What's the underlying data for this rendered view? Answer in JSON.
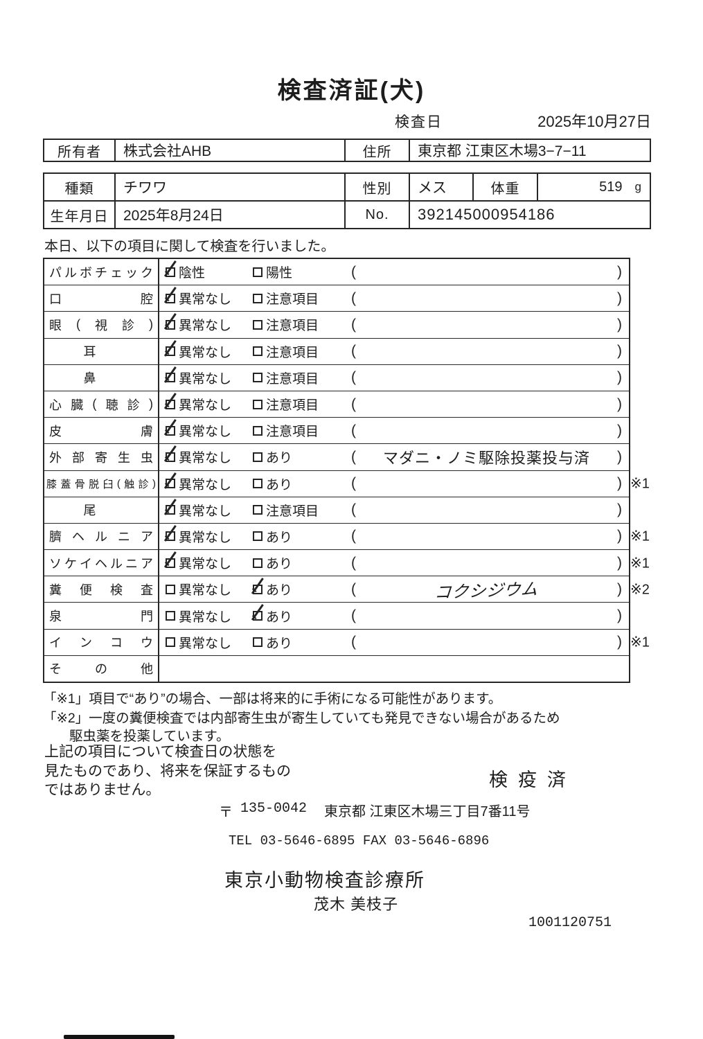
{
  "title": "検査済証(犬)",
  "inspection_date": {
    "label": "検査日",
    "value": "2025年10月27日"
  },
  "owner": {
    "label": "所有者",
    "value": "株式会社AHB",
    "address_label": "住所",
    "address": "東京都 江東区木場3−7−11"
  },
  "pet": {
    "species_label": "種類",
    "species": "チワワ",
    "sex_label": "性別",
    "sex": "メス",
    "weight_label": "体重",
    "weight": "519",
    "weight_unit": "g",
    "birth_label": "生年月日",
    "birth": "2025年8月24日",
    "no_label": "No.",
    "no": "392145000954186"
  },
  "intro": "本日、以下の項目に関して検査を行いました。",
  "table": {
    "rows": [
      {
        "label": "パルボチェック",
        "c1": {
          "checked": true,
          "label": "陰性"
        },
        "c2": {
          "checked": false,
          "label": "陽性"
        },
        "paren": "",
        "hand": false,
        "mark": ""
      },
      {
        "label": "口腔",
        "c1": {
          "checked": true,
          "label": "異常なし"
        },
        "c2": {
          "checked": false,
          "label": "注意項目"
        },
        "paren": "",
        "hand": false,
        "mark": ""
      },
      {
        "label": "眼(視診)",
        "c1": {
          "checked": true,
          "label": "異常なし"
        },
        "c2": {
          "checked": false,
          "label": "注意項目"
        },
        "paren": "",
        "hand": false,
        "mark": ""
      },
      {
        "label": "耳",
        "c1": {
          "checked": true,
          "label": "異常なし"
        },
        "c2": {
          "checked": false,
          "label": "注意項目"
        },
        "paren": "",
        "hand": false,
        "mark": ""
      },
      {
        "label": "鼻",
        "c1": {
          "checked": true,
          "label": "異常なし"
        },
        "c2": {
          "checked": false,
          "label": "注意項目"
        },
        "paren": "",
        "hand": false,
        "mark": ""
      },
      {
        "label": "心臓(聴診)",
        "c1": {
          "checked": true,
          "label": "異常なし"
        },
        "c2": {
          "checked": false,
          "label": "注意項目"
        },
        "paren": "",
        "hand": false,
        "mark": ""
      },
      {
        "label": "皮膚",
        "c1": {
          "checked": true,
          "label": "異常なし"
        },
        "c2": {
          "checked": false,
          "label": "注意項目"
        },
        "paren": "",
        "hand": false,
        "mark": ""
      },
      {
        "label": "外部寄生虫",
        "c1": {
          "checked": true,
          "label": "異常なし"
        },
        "c2": {
          "checked": false,
          "label": "あり"
        },
        "paren": "マダニ・ノミ駆除投薬投与済",
        "hand": false,
        "mark": ""
      },
      {
        "label": "膝蓋骨脱臼(触診)",
        "c1": {
          "checked": true,
          "label": "異常なし"
        },
        "c2": {
          "checked": false,
          "label": "あり"
        },
        "paren": "",
        "hand": false,
        "mark": "※1"
      },
      {
        "label": "尾",
        "c1": {
          "checked": true,
          "label": "異常なし"
        },
        "c2": {
          "checked": false,
          "label": "注意項目"
        },
        "paren": "",
        "hand": false,
        "mark": ""
      },
      {
        "label": "臍ヘルニア",
        "c1": {
          "checked": true,
          "label": "異常なし"
        },
        "c2": {
          "checked": false,
          "label": "あり"
        },
        "paren": "",
        "hand": false,
        "mark": "※1"
      },
      {
        "label": "ソケイヘルニア",
        "c1": {
          "checked": true,
          "label": "異常なし"
        },
        "c2": {
          "checked": false,
          "label": "あり"
        },
        "paren": "",
        "hand": false,
        "mark": "※1"
      },
      {
        "label": "糞便検査",
        "c1": {
          "checked": false,
          "label": "異常なし"
        },
        "c2": {
          "checked": true,
          "label": "あり"
        },
        "paren": "コクシジウム",
        "hand": true,
        "mark": "※2"
      },
      {
        "label": "泉門",
        "c1": {
          "checked": false,
          "label": "異常なし"
        },
        "c2": {
          "checked": true,
          "label": "あり"
        },
        "paren": "",
        "hand": false,
        "mark": ""
      },
      {
        "label": "インコウ",
        "c1": {
          "checked": false,
          "label": "異常なし"
        },
        "c2": {
          "checked": false,
          "label": "あり"
        },
        "paren": "",
        "hand": false,
        "mark": "※1"
      },
      {
        "label": "その他",
        "c1": null,
        "c2": null,
        "paren": null,
        "hand": false,
        "mark": ""
      }
    ]
  },
  "notes": {
    "line1": "「※1」項目で“あり”の場合、一部は将来的に手術になる可能性があります。",
    "line2": "「※2」一度の糞便検査では内部寄生虫が寄生していても発見できない場合があるため",
    "line3": "駆虫薬を投薬しています。"
  },
  "disclaimer": {
    "line1": "上記の項目について検査日の状態を",
    "line2": "見たものであり、将来を保証するもの",
    "line3": "ではありません。"
  },
  "stamp": "検疫済",
  "clinic": {
    "postal_mark": "〒",
    "postal_code": "135-0042",
    "address": "東京都 江東区木場三丁目7番11号",
    "tel_fax": "TEL 03-5646-6895  FAX 03-5646-6896",
    "name": "東京小動物検査診療所",
    "veterinarian": "茂木 美枝子",
    "code": "1001120751"
  }
}
